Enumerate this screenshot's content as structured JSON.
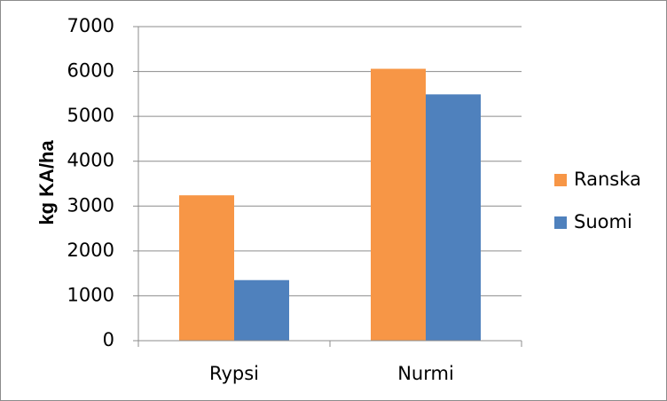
{
  "chart_data": {
    "type": "bar",
    "categories": [
      "Rypsi",
      "Nurmi"
    ],
    "series": [
      {
        "name": "Ranska",
        "color": "#f79646",
        "values": [
          3240,
          6060
        ]
      },
      {
        "name": "Suomi",
        "color": "#4f81bd",
        "values": [
          1350,
          5490
        ]
      }
    ],
    "ylabel": "kg KA/ha",
    "xlabel": "",
    "ylim": [
      0,
      7000
    ],
    "yticks": [
      0,
      1000,
      2000,
      3000,
      4000,
      5000,
      6000,
      7000
    ],
    "grid": true,
    "legend_position": "right"
  }
}
